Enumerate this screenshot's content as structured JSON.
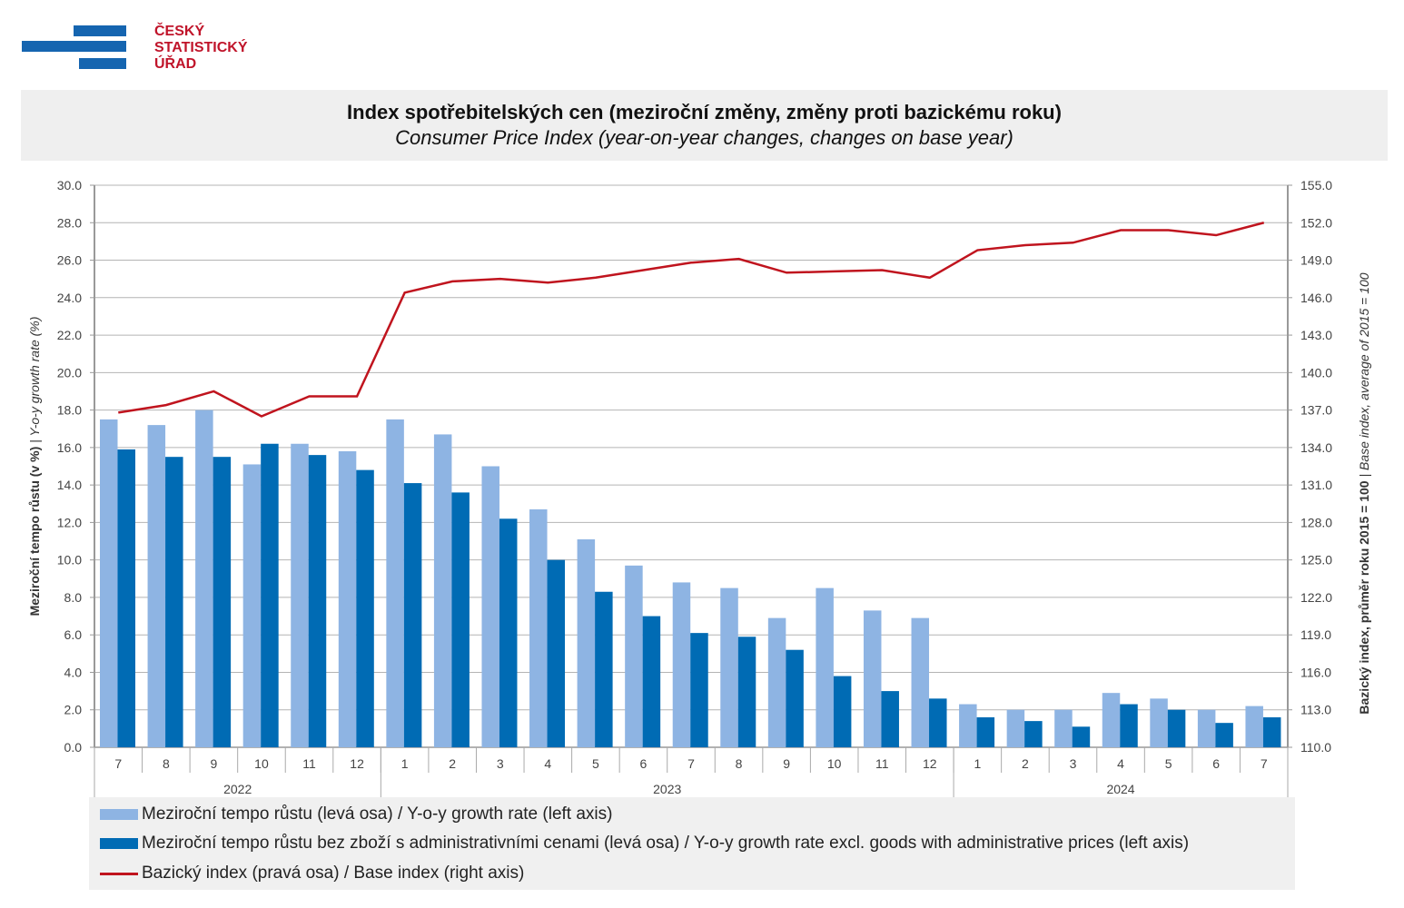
{
  "logo": {
    "lines": [
      "ČESKÝ",
      "STATISTICKÝ",
      "ÚŘAD"
    ],
    "text_color": "#c0142a",
    "bar_color": "#1565b0"
  },
  "header": {
    "title": "Index spotřebitelských cen (meziroční změny, změny proti bazickému roku)",
    "subtitle": "Consumer Price Index (year-on-year changes, changes on base year)"
  },
  "chart_data": {
    "type": "bar+line",
    "categories": [
      "7",
      "8",
      "9",
      "10",
      "11",
      "12",
      "1",
      "2",
      "3",
      "4",
      "5",
      "6",
      "7",
      "8",
      "9",
      "10",
      "11",
      "12",
      "1",
      "2",
      "3",
      "4",
      "5",
      "6",
      "7"
    ],
    "years": [
      {
        "label": "2022",
        "count": 6
      },
      {
        "label": "2023",
        "count": 12
      },
      {
        "label": "2024",
        "count": 7
      }
    ],
    "left_axis": {
      "label_bold": "Meziroční tempo růstu (v %)",
      "label_italic": " | Y-o-y growth rate (%)",
      "ylim": [
        0,
        30
      ],
      "step": 2,
      "ticks": [
        "0.0",
        "2.0",
        "4.0",
        "6.0",
        "8.0",
        "10.0",
        "12.0",
        "14.0",
        "16.0",
        "18.0",
        "20.0",
        "22.0",
        "24.0",
        "26.0",
        "28.0",
        "30.0"
      ]
    },
    "right_axis": {
      "label_bold": "Bazický index, průměr roku 2015 = 100",
      "label_italic": " | Base index, average of 2015 = 100",
      "ylim": [
        110,
        155
      ],
      "step": 3,
      "ticks": [
        "110.0",
        "113.0",
        "116.0",
        "119.0",
        "122.0",
        "125.0",
        "128.0",
        "131.0",
        "134.0",
        "137.0",
        "140.0",
        "143.0",
        "146.0",
        "149.0",
        "152.0",
        "155.0"
      ]
    },
    "grid": true,
    "legend_position": "bottom",
    "series": [
      {
        "name": "Meziroční tempo růstu (levá osa) / Y-o-y growth rate (left axis)",
        "type": "bar",
        "axis": "left",
        "color": "#8eb4e3",
        "values": [
          17.5,
          17.2,
          18.0,
          15.1,
          16.2,
          15.8,
          17.5,
          16.7,
          15.0,
          12.7,
          11.1,
          9.7,
          8.8,
          8.5,
          6.9,
          8.5,
          7.3,
          6.9,
          2.3,
          2.0,
          2.0,
          2.9,
          2.6,
          2.0,
          2.2
        ]
      },
      {
        "name": "Meziroční tempo růstu bez zboží s administrativními cenami (levá osa) / Y-o-y growth rate excl. goods with administrative prices (left axis)",
        "type": "bar",
        "axis": "left",
        "color": "#006bb4",
        "values": [
          15.9,
          15.5,
          15.5,
          16.2,
          15.6,
          14.8,
          14.1,
          13.6,
          12.2,
          10.0,
          8.3,
          7.0,
          6.1,
          5.9,
          5.2,
          3.8,
          3.0,
          2.6,
          1.6,
          1.4,
          1.1,
          2.3,
          2.0,
          1.3,
          1.6
        ]
      },
      {
        "name": "Bazický index (pravá osa) / Base index (right axis)",
        "type": "line",
        "axis": "right",
        "color": "#c0141e",
        "values": [
          136.8,
          137.4,
          138.5,
          136.5,
          138.1,
          138.1,
          146.4,
          147.3,
          147.5,
          147.2,
          147.6,
          148.2,
          148.8,
          149.1,
          148.0,
          148.1,
          148.2,
          147.6,
          149.8,
          150.2,
          150.4,
          151.4,
          151.4,
          151.0,
          152.0
        ]
      }
    ]
  }
}
